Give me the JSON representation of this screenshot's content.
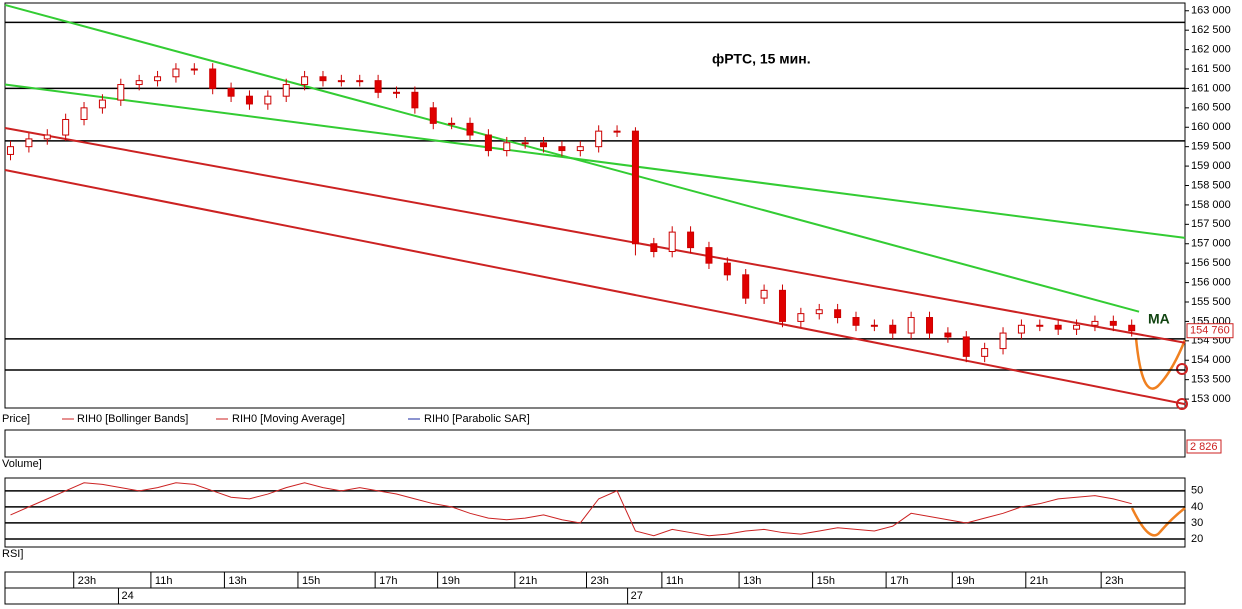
{
  "chart_data": {
    "type": "candlestick",
    "title": "фРТС,  15 мин.",
    "annotation": "MA",
    "last_price": {
      "value": 154760,
      "label": "154 760"
    },
    "legend": [
      "Price]",
      "RIH0 [Bollinger Bands]",
      "RIH0 [Moving Average]",
      "RIH0 [Parabolic SAR]"
    ],
    "up_color": "#ffffff",
    "down_color": "#e00000",
    "edge_color": "#cc0000",
    "open": [
      159300,
      159500,
      159700,
      159800,
      160200,
      160500,
      160700,
      161100,
      161200,
      161300,
      161500,
      161500,
      161000,
      160800,
      160600,
      160800,
      161100,
      161300,
      161200,
      161200,
      161200,
      160900,
      160900,
      160500,
      160100,
      160100,
      159800,
      159400,
      159600,
      159600,
      159500,
      159400,
      159500,
      159900,
      159900,
      157000,
      156800,
      157300,
      156900,
      156500,
      156200,
      155600,
      155800,
      155000,
      155200,
      155300,
      155100,
      154900,
      154900,
      154700,
      155100,
      154700,
      154600,
      154100,
      154300,
      154700,
      154900,
      154900,
      154800,
      154900,
      155000,
      154900
    ],
    "close": [
      159500,
      159700,
      159800,
      160200,
      160500,
      160700,
      161100,
      161200,
      161300,
      161500,
      161500,
      161000,
      160800,
      160600,
      160800,
      161100,
      161300,
      161200,
      161200,
      161200,
      160900,
      160900,
      160500,
      160100,
      160100,
      159800,
      159400,
      159600,
      159600,
      159500,
      159400,
      159500,
      159900,
      159900,
      157000,
      156800,
      157300,
      156900,
      156500,
      156200,
      155600,
      155800,
      155000,
      155200,
      155300,
      155100,
      154900,
      154900,
      154700,
      155100,
      154700,
      154600,
      154100,
      154300,
      154700,
      154900,
      154900,
      154800,
      154900,
      155000,
      154900,
      154760
    ],
    "high": [
      159650,
      159850,
      159950,
      160350,
      160650,
      160850,
      161250,
      161350,
      161450,
      161650,
      161650,
      161650,
      161150,
      160950,
      160950,
      161250,
      161450,
      161450,
      161350,
      161350,
      161350,
      161050,
      161050,
      160650,
      160250,
      160250,
      159950,
      159750,
      159750,
      159750,
      159650,
      159650,
      160050,
      160050,
      160000,
      157150,
      157450,
      157450,
      157050,
      156650,
      156350,
      155950,
      155950,
      155350,
      155450,
      155450,
      155250,
      155050,
      155050,
      155250,
      155250,
      154850,
      154750,
      154450,
      154850,
      155050,
      155050,
      155050,
      155050,
      155150,
      155150,
      155050
    ],
    "low": [
      159150,
      159350,
      159550,
      159650,
      160050,
      160350,
      160550,
      160950,
      161050,
      161150,
      161350,
      160850,
      160650,
      160450,
      160450,
      160650,
      160950,
      161050,
      161050,
      161050,
      160750,
      160750,
      160350,
      159950,
      159950,
      159650,
      159250,
      159250,
      159450,
      159350,
      159250,
      159250,
      159350,
      159750,
      156700,
      156650,
      156650,
      156750,
      156350,
      156050,
      155450,
      155450,
      154850,
      154850,
      155050,
      154950,
      154750,
      154750,
      154550,
      154550,
      154550,
      154450,
      153950,
      153950,
      154150,
      154550,
      154750,
      154650,
      154650,
      154750,
      154750,
      154610
    ],
    "xlim": [
      -0.3,
      63.9
    ],
    "ylim": [
      152770,
      163200
    ],
    "yticks": [
      {
        "value": 153000,
        "label": "153 000"
      },
      {
        "value": 153500,
        "label": "153 500"
      },
      {
        "value": 154000,
        "label": "154 000"
      },
      {
        "value": 154500,
        "label": "154 500"
      },
      {
        "value": 155000,
        "label": "155 000"
      },
      {
        "value": 155500,
        "label": "155 500"
      },
      {
        "value": 156000,
        "label": "156 000"
      },
      {
        "value": 156500,
        "label": "156 500"
      },
      {
        "value": 157000,
        "label": "157 000"
      },
      {
        "value": 157500,
        "label": "157 500"
      },
      {
        "value": 158000,
        "label": "158 000"
      },
      {
        "value": 158500,
        "label": "158 500"
      },
      {
        "value": 159000,
        "label": "159 000"
      },
      {
        "value": 159500,
        "label": "159 500"
      },
      {
        "value": 160000,
        "label": "160 000"
      },
      {
        "value": 160500,
        "label": "160 500"
      },
      {
        "value": 161000,
        "label": "161 000"
      },
      {
        "value": 161500,
        "label": "161 500"
      },
      {
        "value": 162000,
        "label": "162 000"
      },
      {
        "value": 162500,
        "label": "162 500"
      },
      {
        "value": 163000,
        "label": "163 000"
      }
    ],
    "xticks": [
      {
        "value": 4.2,
        "label": "23h"
      },
      {
        "value": 8.4,
        "label": "11h"
      },
      {
        "value": 12.4,
        "label": "13h"
      },
      {
        "value": 16.4,
        "label": "15h"
      },
      {
        "value": 20.6,
        "label": "17h"
      },
      {
        "value": 24,
        "label": "19h"
      },
      {
        "value": 28.2,
        "label": "21h"
      },
      {
        "value": 32.1,
        "label": "23h"
      },
      {
        "value": 36.2,
        "label": "11h"
      },
      {
        "value": 40.4,
        "label": "13h"
      },
      {
        "value": 44.4,
        "label": "15h"
      },
      {
        "value": 48.4,
        "label": "17h"
      },
      {
        "value": 52,
        "label": "19h"
      },
      {
        "value": 56,
        "label": "21h"
      },
      {
        "value": 60.1,
        "label": "23h"
      }
    ],
    "day_ticks": [
      {
        "value": 6.2,
        "label": "24"
      },
      {
        "value": 33.9,
        "label": "27"
      }
    ],
    "levels": [
      162700,
      161000,
      159650,
      154550,
      153750
    ],
    "trendlines": [
      {
        "color": "#33cc33",
        "x": [
          -0.3,
          61.4
        ],
        "values": [
          163150,
          155250
        ]
      },
      {
        "color": "#33cc33",
        "x": [
          -0.3,
          63.9
        ],
        "values": [
          161100,
          157150
        ]
      },
      {
        "color": "#cc2222",
        "x": [
          -0.3,
          63.9
        ],
        "values": [
          159980,
          154450
        ]
      },
      {
        "color": "#cc2222",
        "x": [
          -0.3,
          63.9
        ],
        "values": [
          158900,
          152870
        ]
      }
    ],
    "volume": {
      "label": "Volume]",
      "last": {
        "value": 2826,
        "label": "2 826"
      }
    },
    "rsi": {
      "label": "RSI]",
      "color": "#cc2222",
      "values": [
        35,
        40,
        45,
        50,
        55,
        54,
        52,
        50,
        52,
        55,
        54,
        50,
        46,
        45,
        48,
        52,
        55,
        52,
        50,
        52,
        50,
        48,
        45,
        42,
        40,
        36,
        33,
        32,
        33,
        35,
        32,
        30,
        45,
        50,
        25,
        22,
        26,
        24,
        22,
        23,
        25,
        26,
        24,
        23,
        25,
        27,
        26,
        25,
        28,
        36,
        34,
        32,
        30,
        33,
        36,
        40,
        42,
        45,
        46,
        47,
        45,
        42
      ],
      "ylim": [
        15,
        58
      ],
      "yticks": [
        20,
        30,
        40,
        50
      ]
    }
  }
}
